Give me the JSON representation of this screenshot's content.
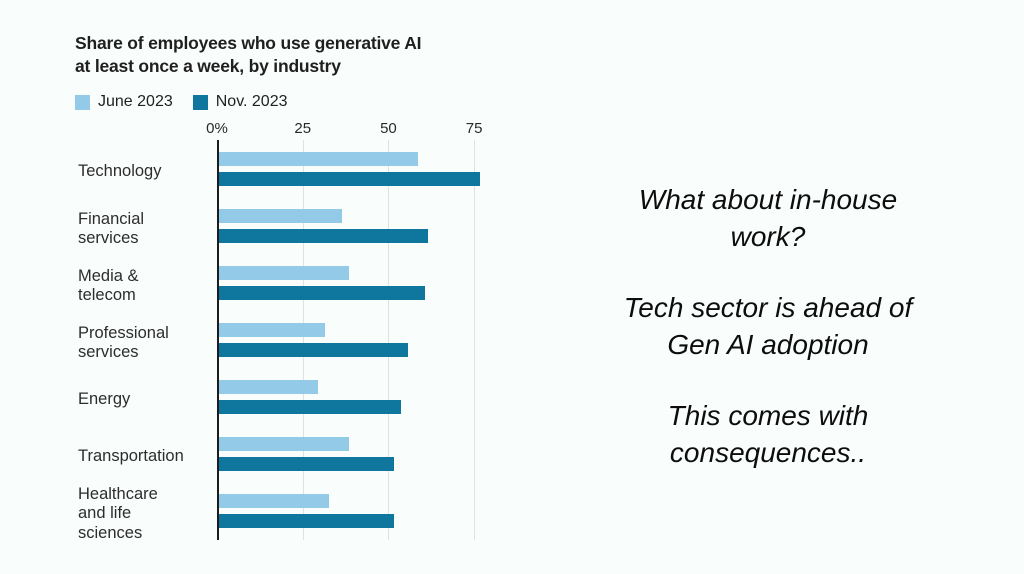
{
  "slide": {
    "background_color": "#f9fdfb"
  },
  "chart": {
    "title_lines": [
      "Share of employees who use generative AI",
      "at least once a week, by industry"
    ],
    "category_label_lines": [
      [
        "Technology"
      ],
      [
        "Financial",
        "services"
      ],
      [
        "Media &",
        "telecom"
      ],
      [
        "Professional",
        "services"
      ],
      [
        "Energy"
      ],
      [
        "Transportation"
      ],
      [
        "Healthcare",
        "and life",
        "sciences"
      ]
    ]
  },
  "chart_data": {
    "type": "bar",
    "orientation": "horizontal",
    "title": "Share of employees who use generative AI at least once a week, by industry",
    "categories": [
      "Technology",
      "Financial services",
      "Media & telecom",
      "Professional services",
      "Energy",
      "Transportation",
      "Healthcare and life sciences"
    ],
    "series": [
      {
        "name": "June 2023",
        "color": "#92cae8",
        "values": [
          58,
          36,
          38,
          31,
          29,
          38,
          32
        ]
      },
      {
        "name": "Nov. 2023",
        "color": "#0f769d",
        "values": [
          76,
          61,
          60,
          55,
          53,
          51,
          51
        ]
      }
    ],
    "x_ticks": [
      "0%",
      "25",
      "50",
      "75"
    ],
    "x_tick_values": [
      0,
      25,
      50,
      75
    ],
    "xlim": [
      0,
      80
    ],
    "grid": true,
    "legend_position": "top-left",
    "axis_color": "#1c1c1c",
    "gridline_color": "#dde3df"
  },
  "annotations": {
    "paragraphs": [
      {
        "lines": [
          "What about in-house",
          "work?"
        ]
      },
      {
        "lines": [
          "Tech sector is ahead of",
          "Gen AI adoption"
        ]
      },
      {
        "lines": [
          "This comes with",
          "consequences.."
        ]
      }
    ]
  }
}
